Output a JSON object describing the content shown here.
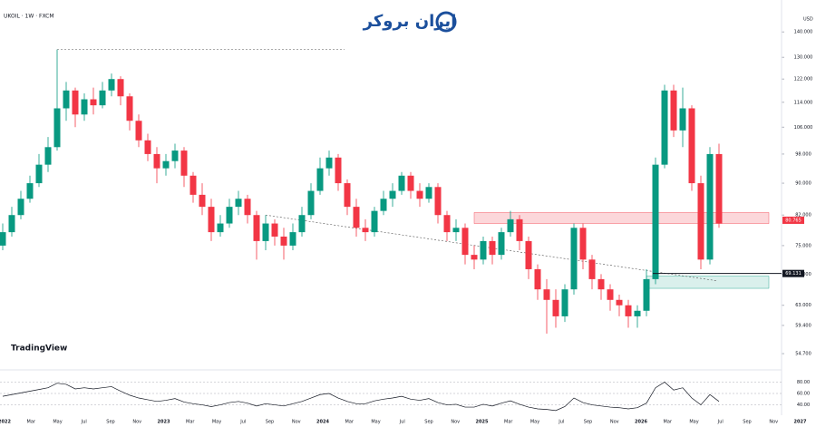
{
  "chart_data": {
    "type": "candlestick",
    "title": "UKOIL · 1W · FXCM",
    "brand": "ایران بروکر",
    "watermark": "TradingView",
    "currency": "USD",
    "log_y": true,
    "up_color": "#089981",
    "down_color": "#f23645",
    "ylim": [
      53,
      145
    ],
    "yticks": [
      {
        "value": 140,
        "label": "140.000"
      },
      {
        "value": 130,
        "label": "130.000"
      },
      {
        "value": 122,
        "label": "122.000"
      },
      {
        "value": 114,
        "label": "114.000"
      },
      {
        "value": 106,
        "label": "106.000"
      },
      {
        "value": 98,
        "label": "98.000"
      },
      {
        "value": 90,
        "label": "90.000"
      },
      {
        "value": 82,
        "label": "82.000"
      },
      {
        "value": 75,
        "label": "75.000"
      },
      {
        "value": 69,
        "label": "69.000"
      },
      {
        "value": 63,
        "label": "63.000"
      },
      {
        "value": 59.4,
        "label": "59.400"
      },
      {
        "value": 54.7,
        "label": "54.700"
      }
    ],
    "open": [
      75,
      78,
      82,
      86,
      90,
      95,
      100,
      112,
      118,
      110,
      115,
      113,
      118,
      122,
      116,
      108,
      102,
      98,
      94,
      96,
      99,
      92,
      87,
      84,
      78,
      80,
      84,
      86,
      82,
      76,
      80,
      77,
      75,
      78,
      82,
      88,
      94,
      97,
      90,
      84,
      79,
      78,
      83,
      86,
      88,
      92,
      88,
      86,
      89,
      82,
      78,
      79,
      73,
      72,
      76,
      73,
      78,
      81,
      76,
      70,
      66,
      64,
      61,
      66,
      79,
      72,
      68,
      66,
      64,
      63,
      61,
      62,
      68,
      95,
      118,
      105,
      112,
      90,
      72,
      98
    ],
    "high": [
      80,
      84,
      88,
      92,
      98,
      103,
      133,
      121,
      119,
      117,
      119,
      121,
      124,
      123,
      117,
      110,
      104,
      100,
      98,
      101,
      100,
      93,
      90,
      86,
      82,
      86,
      88,
      87,
      83,
      82,
      81,
      79,
      80,
      84,
      90,
      97,
      99,
      98,
      91,
      86,
      81,
      84,
      88,
      90,
      93,
      93,
      90,
      90,
      90,
      83,
      81,
      80,
      75,
      77,
      77,
      79,
      83,
      82,
      77,
      71,
      68,
      66,
      67,
      80,
      80,
      73,
      69,
      67,
      65,
      64,
      63,
      70,
      97,
      120,
      120,
      119,
      113,
      92,
      100,
      101
    ],
    "low": [
      74,
      77,
      81,
      85,
      89,
      93,
      99,
      108,
      106,
      108,
      110,
      112,
      116,
      113,
      105,
      100,
      96,
      90,
      92,
      94,
      89,
      85,
      82,
      76,
      77,
      79,
      82,
      80,
      72,
      74,
      75,
      72,
      74,
      77,
      81,
      87,
      92,
      88,
      82,
      77,
      76,
      77,
      82,
      84,
      87,
      86,
      84,
      85,
      80,
      76,
      76,
      71,
      70,
      71,
      71,
      72,
      77,
      74,
      68,
      64,
      58,
      59,
      60,
      65,
      70,
      66,
      64,
      62,
      61,
      59,
      59,
      61,
      67,
      94,
      103,
      100,
      88,
      70,
      71,
      79
    ],
    "close": [
      78,
      82,
      86,
      90,
      95,
      100,
      112,
      118,
      110,
      115,
      113,
      118,
      122,
      116,
      108,
      102,
      98,
      94,
      96,
      99,
      92,
      87,
      84,
      78,
      80,
      84,
      86,
      82,
      76,
      80,
      77,
      75,
      78,
      82,
      88,
      94,
      97,
      90,
      84,
      79,
      78,
      83,
      86,
      88,
      92,
      88,
      86,
      89,
      82,
      78,
      79,
      73,
      72,
      76,
      73,
      78,
      81,
      76,
      70,
      66,
      64,
      61,
      66,
      79,
      72,
      68,
      66,
      64,
      63,
      61,
      62,
      68,
      95,
      118,
      105,
      112,
      90,
      72,
      98,
      80
    ],
    "zones": [
      {
        "low": 80,
        "high": 82.6,
        "color": "#f2364533"
      },
      {
        "low": 66.2,
        "high": 68.6,
        "color": "#08998126"
      }
    ],
    "price_tags": [
      {
        "value": 80.765,
        "color": "#f23645"
      },
      {
        "value": 69.131,
        "color": "#131722"
      }
    ],
    "rsi": {
      "values": [
        55,
        58,
        61,
        64,
        67,
        70,
        78,
        76,
        68,
        70,
        68,
        70,
        72,
        64,
        57,
        52,
        49,
        46,
        48,
        51,
        45,
        42,
        40,
        37,
        40,
        44,
        46,
        43,
        38,
        42,
        40,
        38,
        42,
        46,
        52,
        58,
        60,
        52,
        46,
        42,
        42,
        47,
        50,
        52,
        55,
        50,
        48,
        51,
        44,
        40,
        41,
        36,
        36,
        41,
        38,
        43,
        47,
        41,
        36,
        33,
        32,
        30,
        37,
        52,
        44,
        40,
        38,
        36,
        35,
        33,
        35,
        43,
        70,
        80,
        66,
        70,
        52,
        40,
        58,
        46
      ],
      "ylim": [
        25,
        95
      ],
      "yticks": [
        {
          "value": 80,
          "label": "80.00"
        },
        {
          "value": 60,
          "label": "60.00"
        },
        {
          "value": 40,
          "label": "40.00"
        }
      ]
    },
    "xlabels": [
      "2022",
      "Mar",
      "May",
      "Jul",
      "Sep",
      "Nov",
      "2023",
      "Mar",
      "May",
      "Jul",
      "Sep",
      "Nov",
      "2024",
      "Mar",
      "May",
      "Jul",
      "Sep",
      "Nov",
      "2025",
      "Mar",
      "May",
      "Jul",
      "Sep",
      "Nov",
      "2026",
      "Mar",
      "May",
      "Jul",
      "Sep",
      "Nov",
      "2027"
    ]
  }
}
